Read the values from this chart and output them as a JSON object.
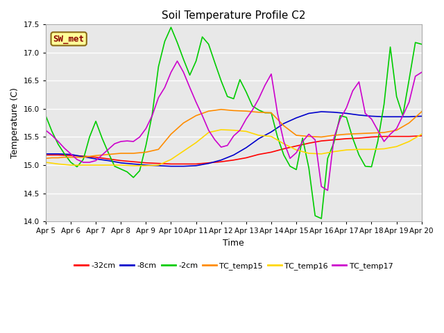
{
  "title": "Soil Temperature Profile C2",
  "xlabel": "Time",
  "ylabel": "Temperature (C)",
  "ylim": [
    14.0,
    17.5
  ],
  "yticks": [
    14.0,
    14.5,
    15.0,
    15.5,
    16.0,
    16.5,
    17.0,
    17.5
  ],
  "xtick_labels": [
    "Apr 5",
    "Apr 6",
    "Apr 7",
    "Apr 8",
    "Apr 9",
    "Apr 10",
    "Apr 11",
    "Apr 12",
    "Apr 13",
    "Apr 14",
    "Apr 15",
    "Apr 16",
    "Apr 17",
    "Apr 18",
    "Apr 19",
    "Apr 20"
  ],
  "annotation_text": "SW_met",
  "annotation_color": "#8B0000",
  "annotation_bg": "#FFFF99",
  "annotation_border": "#8B6914",
  "line_colors": {
    "-32cm": "#FF0000",
    "-8cm": "#0000CC",
    "-2cm": "#00CC00",
    "TC_temp15": "#FF8C00",
    "TC_temp16": "#FFD700",
    "TC_temp17": "#CC00CC"
  },
  "bg_color": "#FFFFFF",
  "plot_bg_light": "#E8E8E8",
  "plot_bg_dark": "#D8D8D8",
  "grid_color": "#FFFFFF",
  "series": {
    "-32cm": {
      "x": [
        0,
        0.5,
        1,
        1.5,
        2,
        2.5,
        3,
        3.5,
        4,
        4.5,
        5,
        5.5,
        6,
        6.5,
        7,
        7.5,
        8,
        8.5,
        9,
        9.5,
        10,
        10.5,
        11,
        11.5,
        12,
        12.5,
        13,
        13.5,
        14,
        14.5,
        15
      ],
      "y": [
        15.18,
        15.18,
        15.17,
        15.16,
        15.14,
        15.11,
        15.08,
        15.06,
        15.04,
        15.03,
        15.02,
        15.02,
        15.02,
        15.04,
        15.06,
        15.09,
        15.13,
        15.19,
        15.23,
        15.29,
        15.34,
        15.39,
        15.43,
        15.45,
        15.47,
        15.48,
        15.5,
        15.51,
        15.51,
        15.51,
        15.52
      ]
    },
    "-8cm": {
      "x": [
        0,
        0.5,
        1,
        1.5,
        2,
        2.5,
        3,
        3.5,
        4,
        4.5,
        5,
        5.5,
        6,
        6.5,
        7,
        7.5,
        8,
        8.5,
        9,
        9.5,
        10,
        10.5,
        11,
        11.5,
        12,
        12.5,
        13,
        13.5,
        14,
        14.5,
        15
      ],
      "y": [
        15.2,
        15.2,
        15.19,
        15.15,
        15.11,
        15.08,
        15.04,
        15.02,
        15.0,
        14.99,
        14.98,
        14.98,
        14.99,
        15.03,
        15.09,
        15.18,
        15.31,
        15.47,
        15.59,
        15.74,
        15.84,
        15.92,
        15.95,
        15.94,
        15.92,
        15.89,
        15.87,
        15.86,
        15.86,
        15.86,
        15.87
      ]
    },
    "-2cm": {
      "x": [
        0,
        0.25,
        0.5,
        0.75,
        1,
        1.25,
        1.5,
        1.75,
        2,
        2.25,
        2.5,
        2.75,
        3,
        3.25,
        3.5,
        3.75,
        4,
        4.25,
        4.5,
        4.75,
        5,
        5.25,
        5.5,
        5.75,
        6,
        6.25,
        6.5,
        6.75,
        7,
        7.25,
        7.5,
        7.75,
        8,
        8.25,
        8.5,
        8.75,
        9,
        9.25,
        9.5,
        9.75,
        10,
        10.25,
        10.5,
        10.75,
        11,
        11.25,
        11.5,
        11.75,
        12,
        12.25,
        12.5,
        12.75,
        13,
        13.25,
        13.5,
        13.75,
        14,
        14.25,
        14.5,
        14.75,
        15
      ],
      "y": [
        15.88,
        15.6,
        15.37,
        15.2,
        15.05,
        14.97,
        15.1,
        15.5,
        15.78,
        15.48,
        15.22,
        14.98,
        14.93,
        14.88,
        14.78,
        14.9,
        15.35,
        15.9,
        16.75,
        17.2,
        17.45,
        17.18,
        16.88,
        16.6,
        16.85,
        17.28,
        17.15,
        16.82,
        16.5,
        16.22,
        16.18,
        16.52,
        16.3,
        16.05,
        15.98,
        15.93,
        15.93,
        15.5,
        15.18,
        14.98,
        14.92,
        15.48,
        14.95,
        14.1,
        14.05,
        15.12,
        15.4,
        15.88,
        15.85,
        15.48,
        15.18,
        14.98,
        14.97,
        15.42,
        16.08,
        17.1,
        16.22,
        15.88,
        16.52,
        17.18,
        17.15
      ]
    },
    "TC_temp15": {
      "x": [
        0,
        0.25,
        0.5,
        0.75,
        1,
        1.5,
        2,
        2.5,
        3,
        3.5,
        4,
        4.5,
        5,
        5.5,
        6,
        6.5,
        7,
        7.5,
        8,
        8.5,
        9,
        9.5,
        10,
        10.5,
        11,
        11.5,
        12,
        12.5,
        13,
        13.5,
        14,
        14.5,
        15
      ],
      "y": [
        15.12,
        15.13,
        15.13,
        15.14,
        15.14,
        15.14,
        15.17,
        15.19,
        15.21,
        15.21,
        15.23,
        15.28,
        15.55,
        15.75,
        15.88,
        15.96,
        15.99,
        15.97,
        15.96,
        15.94,
        15.93,
        15.7,
        15.53,
        15.51,
        15.5,
        15.53,
        15.55,
        15.56,
        15.57,
        15.58,
        15.62,
        15.75,
        15.95
      ]
    },
    "TC_temp16": {
      "x": [
        0,
        0.5,
        1,
        1.5,
        2,
        2.5,
        3,
        3.5,
        4,
        4.5,
        5,
        5.5,
        6,
        6.5,
        7,
        7.5,
        8,
        8.5,
        9,
        9.5,
        10,
        10.5,
        11,
        11.5,
        12,
        12.5,
        13,
        13.5,
        14,
        14.5,
        15
      ],
      "y": [
        15.05,
        15.02,
        15.0,
        15.0,
        15.0,
        15.0,
        15.0,
        14.99,
        14.99,
        15.0,
        15.1,
        15.25,
        15.4,
        15.58,
        15.63,
        15.62,
        15.6,
        15.53,
        15.51,
        15.38,
        15.27,
        15.21,
        15.2,
        15.24,
        15.27,
        15.28,
        15.28,
        15.29,
        15.33,
        15.42,
        15.55
      ]
    },
    "TC_temp17": {
      "x": [
        0,
        0.25,
        0.5,
        0.75,
        1,
        1.25,
        1.5,
        1.75,
        2,
        2.25,
        2.5,
        2.75,
        3,
        3.25,
        3.5,
        3.75,
        4,
        4.25,
        4.5,
        4.75,
        5,
        5.25,
        5.5,
        5.75,
        6,
        6.25,
        6.5,
        6.75,
        7,
        7.25,
        7.5,
        7.75,
        8,
        8.25,
        8.5,
        8.75,
        9,
        9.25,
        9.5,
        9.75,
        10,
        10.25,
        10.5,
        10.75,
        11,
        11.25,
        11.5,
        11.75,
        12,
        12.25,
        12.5,
        12.75,
        13,
        13.25,
        13.5,
        13.75,
        14,
        14.25,
        14.5,
        14.75,
        15
      ],
      "y": [
        15.62,
        15.53,
        15.42,
        15.3,
        15.2,
        15.1,
        15.05,
        15.05,
        15.08,
        15.18,
        15.28,
        15.38,
        15.42,
        15.43,
        15.42,
        15.5,
        15.65,
        15.88,
        16.2,
        16.38,
        16.65,
        16.85,
        16.65,
        16.38,
        16.12,
        15.88,
        15.62,
        15.45,
        15.32,
        15.35,
        15.52,
        15.62,
        15.82,
        15.98,
        16.18,
        16.42,
        16.62,
        15.92,
        15.42,
        15.12,
        15.22,
        15.42,
        15.55,
        15.45,
        14.62,
        14.55,
        15.48,
        15.82,
        16.02,
        16.32,
        16.48,
        15.92,
        15.82,
        15.62,
        15.42,
        15.55,
        15.65,
        15.88,
        16.12,
        16.58,
        16.65
      ]
    }
  }
}
